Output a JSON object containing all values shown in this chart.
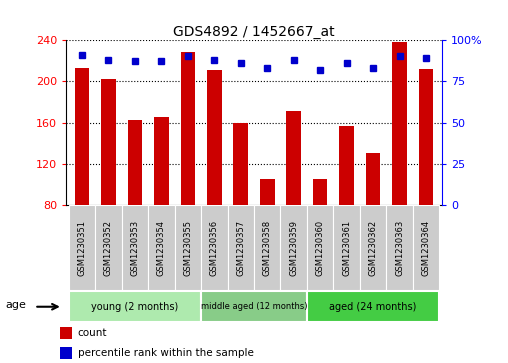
{
  "title": "GDS4892 / 1452667_at",
  "samples": [
    "GSM1230351",
    "GSM1230352",
    "GSM1230353",
    "GSM1230354",
    "GSM1230355",
    "GSM1230356",
    "GSM1230357",
    "GSM1230358",
    "GSM1230359",
    "GSM1230360",
    "GSM1230361",
    "GSM1230362",
    "GSM1230363",
    "GSM1230364"
  ],
  "counts": [
    213,
    202,
    162,
    165,
    228,
    211,
    160,
    105,
    171,
    105,
    157,
    130,
    238,
    212
  ],
  "percentiles": [
    91,
    88,
    87,
    87,
    90,
    88,
    86,
    83,
    88,
    82,
    86,
    83,
    90,
    89
  ],
  "groups": [
    {
      "label": "young (2 months)",
      "start": 0,
      "end": 5,
      "color": "#AEEAAE"
    },
    {
      "label": "middle aged (12 months)",
      "start": 5,
      "end": 9,
      "color": "#88CC88"
    },
    {
      "label": "aged (24 months)",
      "start": 9,
      "end": 14,
      "color": "#44CC44"
    }
  ],
  "ylim_left": [
    80,
    240
  ],
  "ylim_right": [
    0,
    100
  ],
  "yticks_left": [
    80,
    120,
    160,
    200,
    240
  ],
  "yticks_right": [
    0,
    25,
    50,
    75,
    100
  ],
  "bar_color": "#CC0000",
  "dot_color": "#0000CC",
  "bar_width": 0.55,
  "legend_items": [
    {
      "label": "count",
      "color": "#CC0000"
    },
    {
      "label": "percentile rank within the sample",
      "color": "#0000CC"
    }
  ],
  "age_label": "age",
  "background_color": "#FFFFFF",
  "plot_bg_color": "#FFFFFF",
  "tick_bg_color": "#CCCCCC"
}
